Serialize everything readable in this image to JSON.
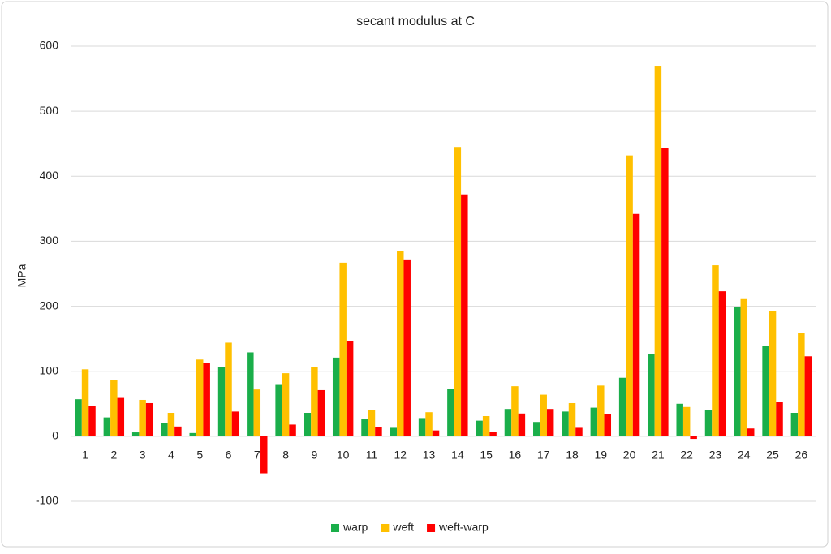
{
  "chart_data": {
    "type": "bar",
    "title": "secant modulus at C",
    "y_label": "MPa",
    "categories": [
      "1",
      "2",
      "3",
      "4",
      "5",
      "6",
      "7",
      "8",
      "9",
      "10",
      "11",
      "12",
      "13",
      "14",
      "15",
      "16",
      "17",
      "18",
      "19",
      "20",
      "21",
      "22",
      "23",
      "24",
      "25",
      "26"
    ],
    "series": [
      {
        "name": "warp",
        "color": "#1aae4a",
        "values": [
          57,
          29,
          6,
          21,
          5,
          106,
          129,
          79,
          36,
          121,
          26,
          13,
          28,
          73,
          24,
          42,
          22,
          38,
          44,
          90,
          126,
          50,
          40,
          199,
          139,
          36
        ]
      },
      {
        "name": "weft",
        "color": "#ffc000",
        "values": [
          103,
          87,
          56,
          36,
          118,
          144,
          72,
          97,
          107,
          267,
          40,
          285,
          37,
          445,
          31,
          77,
          64,
          51,
          78,
          432,
          570,
          45,
          263,
          211,
          192,
          159
        ]
      },
      {
        "name": "weft-warp",
        "color": "#ff0000",
        "values": [
          46,
          59,
          51,
          15,
          113,
          38,
          -57,
          18,
          71,
          146,
          14,
          272,
          9,
          372,
          7,
          35,
          42,
          13,
          34,
          342,
          444,
          -4,
          223,
          12,
          53,
          123
        ]
      }
    ],
    "ylim": [
      -100,
      600
    ],
    "yticks": [
      -100,
      0,
      100,
      200,
      300,
      400,
      500,
      600
    ],
    "grid": true,
    "legend": "bottom"
  }
}
